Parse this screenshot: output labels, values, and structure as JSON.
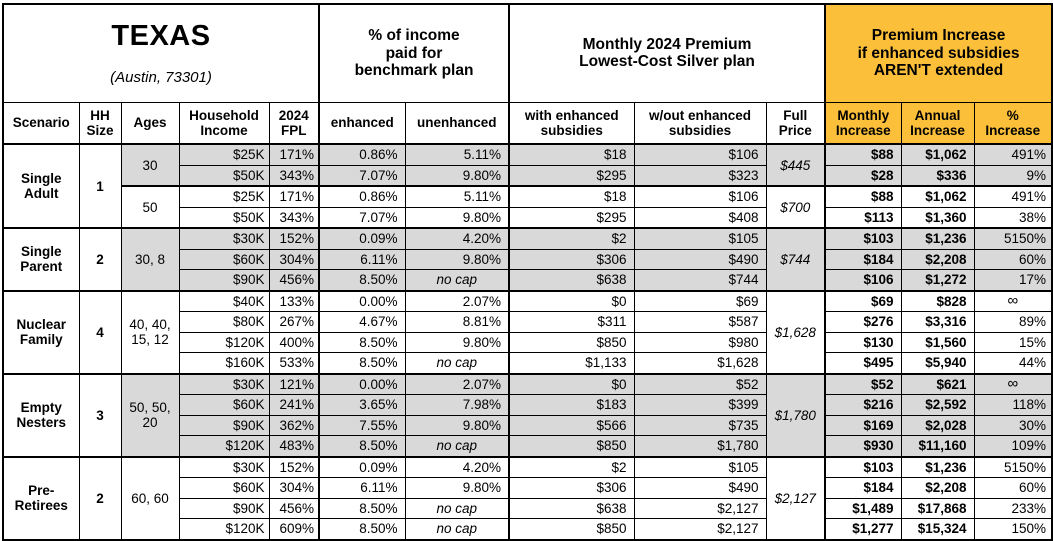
{
  "title": {
    "state": "TEXAS",
    "location": "(Austin, 73301)"
  },
  "header": {
    "benchmark_group": "% of income\npaid for\nbenchmark plan",
    "premium_group": "Monthly 2024 Premium\nLowest-Cost Silver plan",
    "increase_group": "Premium Increase\nif enhanced subsidies\nAREN'T extended"
  },
  "columns": [
    {
      "key": "scenario",
      "label": "Scenario"
    },
    {
      "key": "hh",
      "label": "HH\nSize"
    },
    {
      "key": "ages",
      "label": "Ages"
    },
    {
      "key": "income",
      "label": "Household\nIncome"
    },
    {
      "key": "fpl",
      "label": "2024\nFPL"
    },
    {
      "key": "enhanced",
      "label": "enhanced"
    },
    {
      "key": "unenhanced",
      "label": "unenhanced"
    },
    {
      "key": "with_subsidies",
      "label": "with enhanced\nsubsidies"
    },
    {
      "key": "wout_subsidies",
      "label": "w/out enhanced\nsubsidies"
    },
    {
      "key": "full_price",
      "label": "Full\nPrice"
    },
    {
      "key": "monthly",
      "label": "Monthly\nIncrease"
    },
    {
      "key": "annual",
      "label": "Annual\nIncrease"
    },
    {
      "key": "pct",
      "label": "%\nIncrease"
    }
  ],
  "colors": {
    "accent_orange": "#FBBF3A",
    "row_shade": "#D9D9D9",
    "border": "#000000"
  },
  "chart_data": {
    "type": "table",
    "groups": [
      {
        "scenario": "Single\nAdult",
        "hh_size": "1",
        "subgroups": [
          {
            "ages": "30",
            "shaded": true,
            "full_price": "$445",
            "rows": [
              {
                "income": "$25K",
                "fpl": "171%",
                "enhanced": "0.86%",
                "unenhanced": "5.11%",
                "with_subsidies": "$18",
                "wout_subsidies": "$106",
                "monthly": "$88",
                "annual": "$1,062",
                "pct": "491%"
              },
              {
                "income": "$50K",
                "fpl": "343%",
                "enhanced": "7.07%",
                "unenhanced": "9.80%",
                "with_subsidies": "$295",
                "wout_subsidies": "$323",
                "monthly": "$28",
                "annual": "$336",
                "pct": "9%"
              }
            ]
          },
          {
            "ages": "50",
            "shaded": false,
            "full_price": "$700",
            "rows": [
              {
                "income": "$25K",
                "fpl": "171%",
                "enhanced": "0.86%",
                "unenhanced": "5.11%",
                "with_subsidies": "$18",
                "wout_subsidies": "$106",
                "monthly": "$88",
                "annual": "$1,062",
                "pct": "491%"
              },
              {
                "income": "$50K",
                "fpl": "343%",
                "enhanced": "7.07%",
                "unenhanced": "9.80%",
                "with_subsidies": "$295",
                "wout_subsidies": "$408",
                "monthly": "$113",
                "annual": "$1,360",
                "pct": "38%"
              }
            ]
          }
        ]
      },
      {
        "scenario": "Single\nParent",
        "hh_size": "2",
        "subgroups": [
          {
            "ages": "30, 8",
            "shaded": true,
            "full_price": "$744",
            "rows": [
              {
                "income": "$30K",
                "fpl": "152%",
                "enhanced": "0.09%",
                "unenhanced": "4.20%",
                "with_subsidies": "$2",
                "wout_subsidies": "$105",
                "monthly": "$103",
                "annual": "$1,236",
                "pct": "5150%"
              },
              {
                "income": "$60K",
                "fpl": "304%",
                "enhanced": "6.11%",
                "unenhanced": "9.80%",
                "with_subsidies": "$306",
                "wout_subsidies": "$490",
                "monthly": "$184",
                "annual": "$2,208",
                "pct": "60%"
              },
              {
                "income": "$90K",
                "fpl": "456%",
                "enhanced": "8.50%",
                "unenhanced": "no cap",
                "with_subsidies": "$638",
                "wout_subsidies": "$744",
                "monthly": "$106",
                "annual": "$1,272",
                "pct": "17%"
              }
            ]
          }
        ]
      },
      {
        "scenario": "Nuclear\nFamily",
        "hh_size": "4",
        "subgroups": [
          {
            "ages": "40, 40,\n15, 12",
            "shaded": false,
            "full_price": "$1,628",
            "rows": [
              {
                "income": "$40K",
                "fpl": "133%",
                "enhanced": "0.00%",
                "unenhanced": "2.07%",
                "with_subsidies": "$0",
                "wout_subsidies": "$69",
                "monthly": "$69",
                "annual": "$828",
                "pct": "∞"
              },
              {
                "income": "$80K",
                "fpl": "267%",
                "enhanced": "4.67%",
                "unenhanced": "8.81%",
                "with_subsidies": "$311",
                "wout_subsidies": "$587",
                "monthly": "$276",
                "annual": "$3,316",
                "pct": "89%"
              },
              {
                "income": "$120K",
                "fpl": "400%",
                "enhanced": "8.50%",
                "unenhanced": "9.80%",
                "with_subsidies": "$850",
                "wout_subsidies": "$980",
                "monthly": "$130",
                "annual": "$1,560",
                "pct": "15%"
              },
              {
                "income": "$160K",
                "fpl": "533%",
                "enhanced": "8.50%",
                "unenhanced": "no cap",
                "with_subsidies": "$1,133",
                "wout_subsidies": "$1,628",
                "monthly": "$495",
                "annual": "$5,940",
                "pct": "44%"
              }
            ]
          }
        ]
      },
      {
        "scenario": "Empty\nNesters",
        "hh_size": "3",
        "subgroups": [
          {
            "ages": "50, 50,\n20",
            "shaded": true,
            "full_price": "$1,780",
            "rows": [
              {
                "income": "$30K",
                "fpl": "121%",
                "enhanced": "0.00%",
                "unenhanced": "2.07%",
                "with_subsidies": "$0",
                "wout_subsidies": "$52",
                "monthly": "$52",
                "annual": "$621",
                "pct": "∞"
              },
              {
                "income": "$60K",
                "fpl": "241%",
                "enhanced": "3.65%",
                "unenhanced": "7.98%",
                "with_subsidies": "$183",
                "wout_subsidies": "$399",
                "monthly": "$216",
                "annual": "$2,592",
                "pct": "118%"
              },
              {
                "income": "$90K",
                "fpl": "362%",
                "enhanced": "7.55%",
                "unenhanced": "9.80%",
                "with_subsidies": "$566",
                "wout_subsidies": "$735",
                "monthly": "$169",
                "annual": "$2,028",
                "pct": "30%"
              },
              {
                "income": "$120K",
                "fpl": "483%",
                "enhanced": "8.50%",
                "unenhanced": "no cap",
                "with_subsidies": "$850",
                "wout_subsidies": "$1,780",
                "monthly": "$930",
                "annual": "$11,160",
                "pct": "109%"
              }
            ]
          }
        ]
      },
      {
        "scenario": "Pre-\nRetirees",
        "hh_size": "2",
        "subgroups": [
          {
            "ages": "60, 60",
            "shaded": false,
            "full_price": "$2,127",
            "rows": [
              {
                "income": "$30K",
                "fpl": "152%",
                "enhanced": "0.09%",
                "unenhanced": "4.20%",
                "with_subsidies": "$2",
                "wout_subsidies": "$105",
                "monthly": "$103",
                "annual": "$1,236",
                "pct": "5150%"
              },
              {
                "income": "$60K",
                "fpl": "304%",
                "enhanced": "6.11%",
                "unenhanced": "9.80%",
                "with_subsidies": "$306",
                "wout_subsidies": "$490",
                "monthly": "$184",
                "annual": "$2,208",
                "pct": "60%"
              },
              {
                "income": "$90K",
                "fpl": "456%",
                "enhanced": "8.50%",
                "unenhanced": "no cap",
                "with_subsidies": "$638",
                "wout_subsidies": "$2,127",
                "monthly": "$1,489",
                "annual": "$17,868",
                "pct": "233%"
              },
              {
                "income": "$120K",
                "fpl": "609%",
                "enhanced": "8.50%",
                "unenhanced": "no cap",
                "with_subsidies": "$850",
                "wout_subsidies": "$2,127",
                "monthly": "$1,277",
                "annual": "$15,324",
                "pct": "150%"
              }
            ]
          }
        ]
      }
    ]
  }
}
